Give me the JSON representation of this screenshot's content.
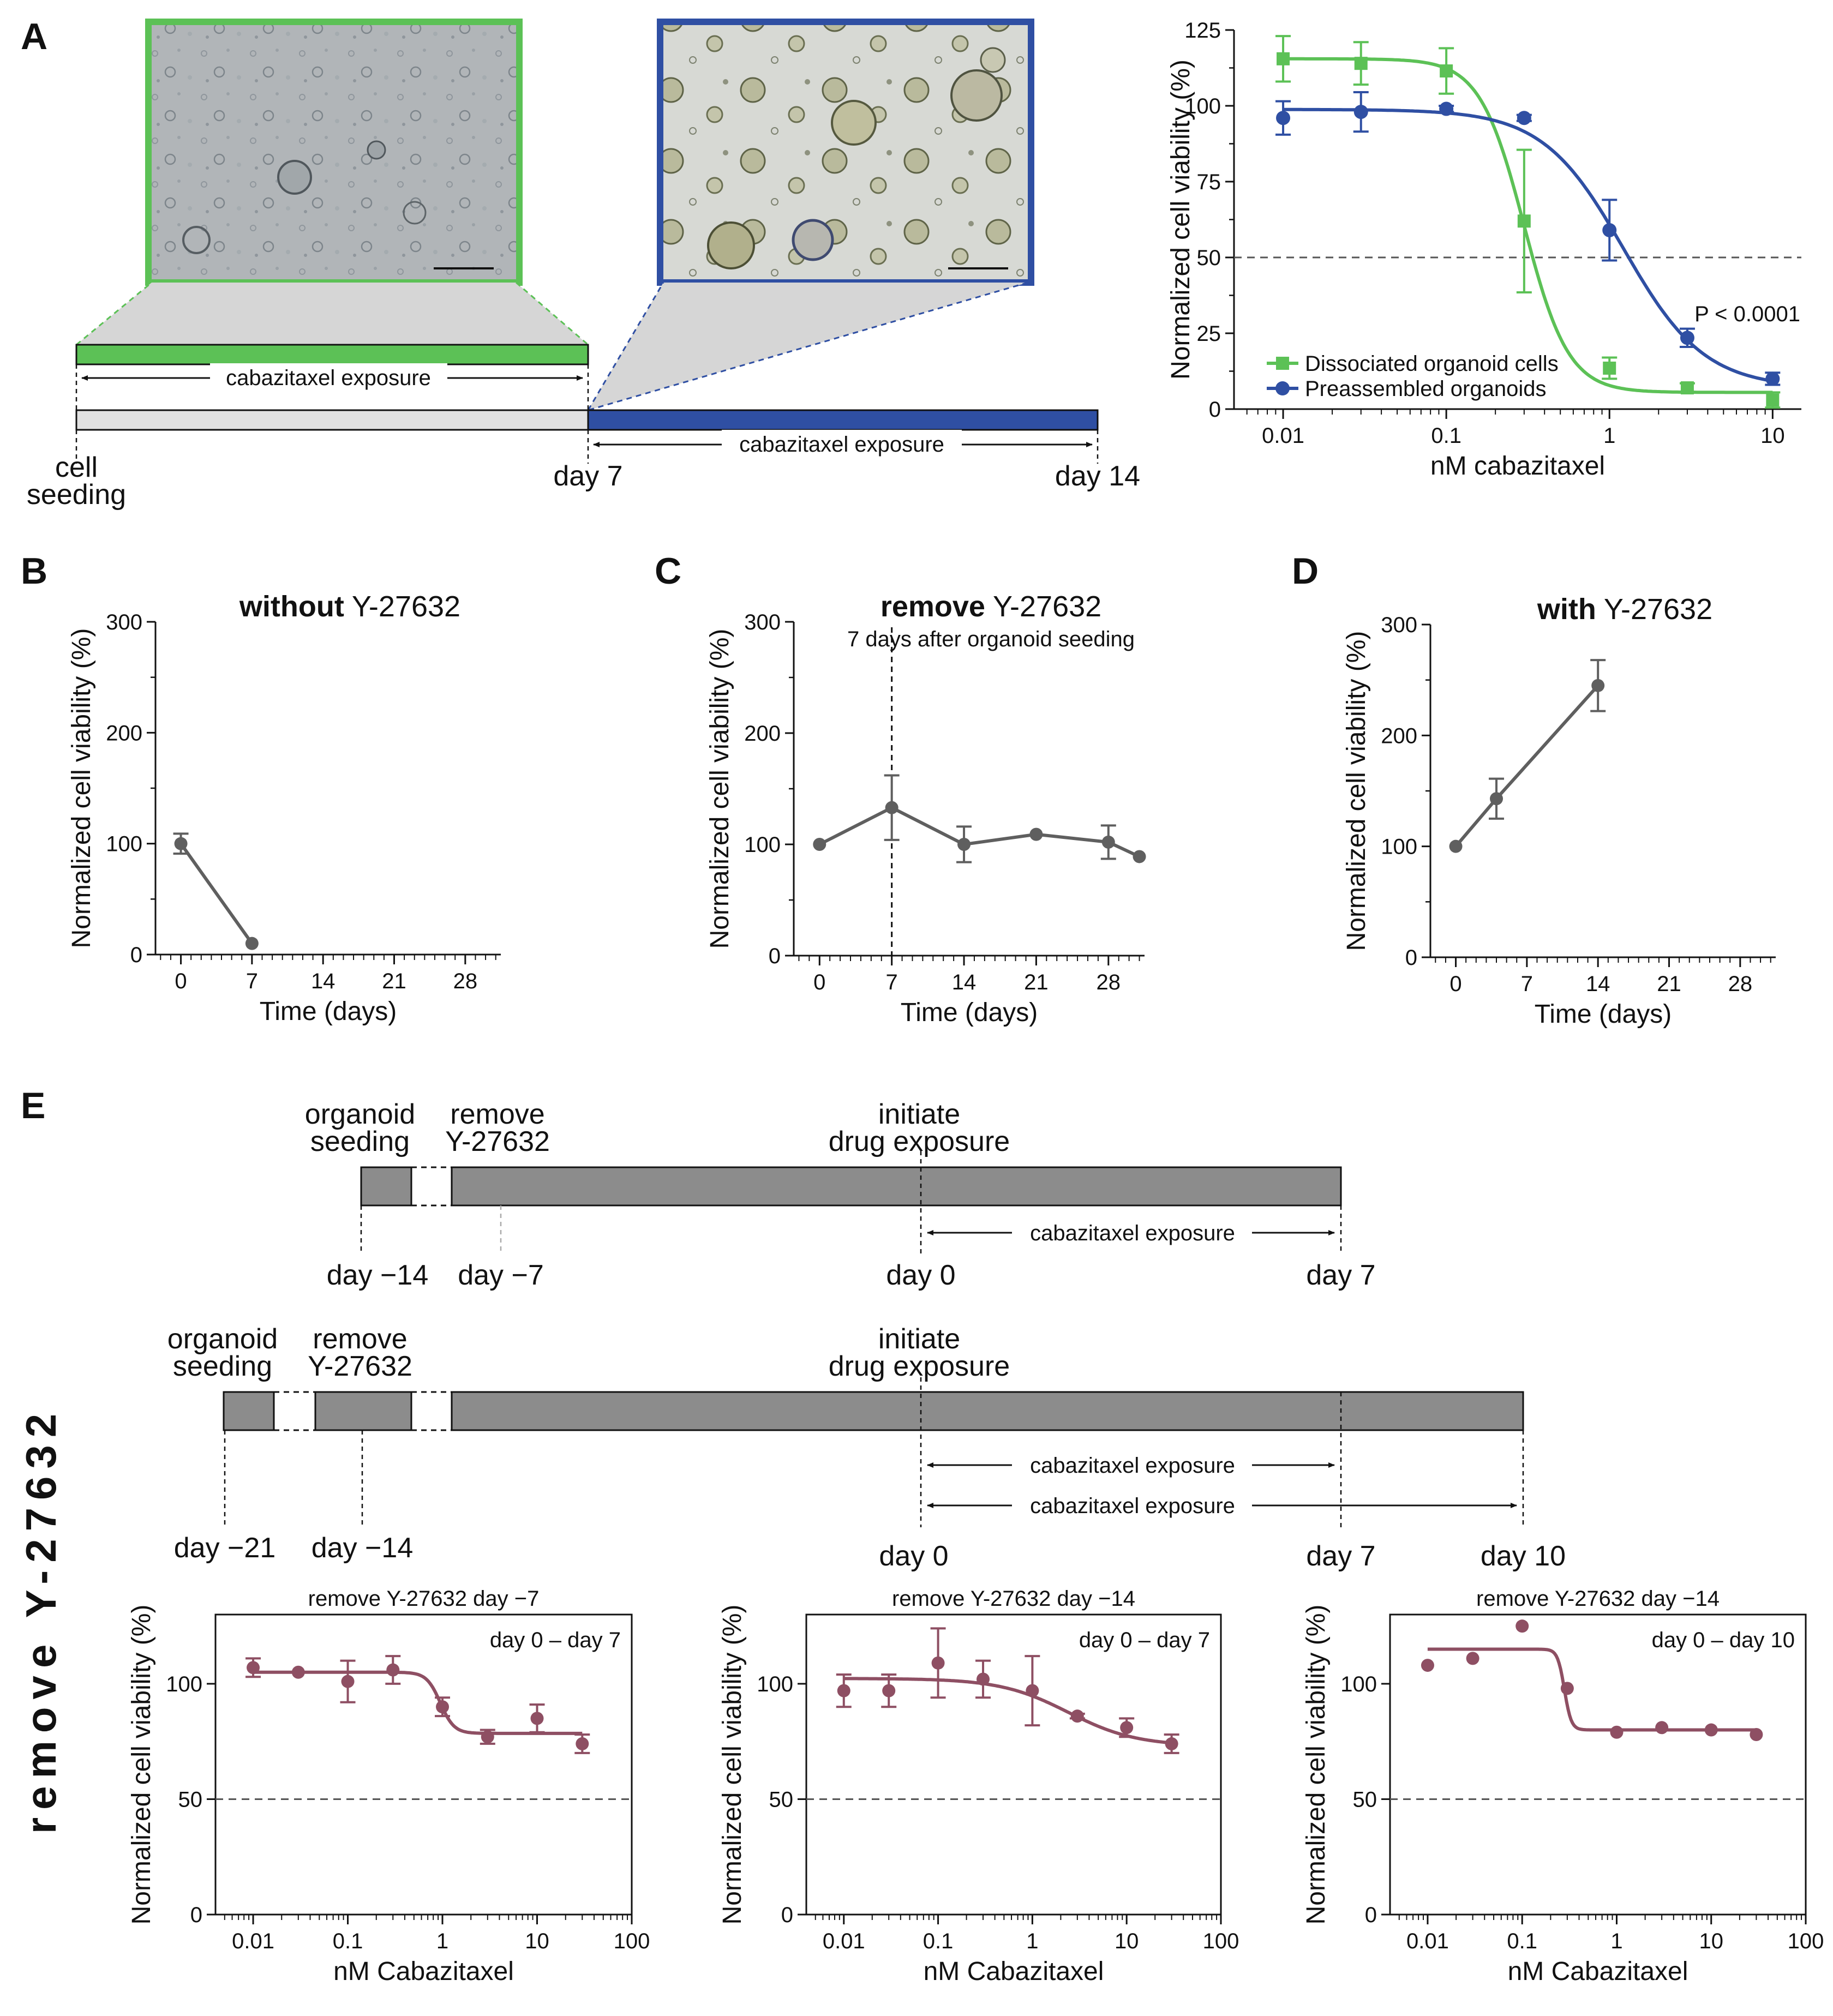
{
  "panels": {
    "A": "A",
    "B": "B",
    "C": "C",
    "D": "D",
    "E": "E"
  },
  "colors": {
    "green": "#5cc156",
    "blue": "#2f4fa3",
    "gray_line": "#5f5f5f",
    "mauve": "#8e4f63",
    "bar_gray": "#8c8c8c",
    "bar_light": "#e2e2e2"
  },
  "timeline_a": {
    "exposure1": "cabazitaxel exposure",
    "exposure2": "cabazitaxel exposure",
    "cell_seeding": "cell\nseeding",
    "day7": "day 7",
    "day14": "day 14"
  },
  "timeline_e1": {
    "organoid_seeding": "organoid\nseeding",
    "remove": "remove\nY-27632",
    "initiate": "initiate\ndrug exposure",
    "exposure": "cabazitaxel exposure",
    "day_m14": "day −14",
    "day_m7": "day −7",
    "day0": "day 0",
    "day7": "day 7"
  },
  "timeline_e2": {
    "organoid_seeding": "organoid\nseeding",
    "remove": "remove\nY-27632",
    "initiate": "initiate\ndrug exposure",
    "exposure1": "cabazitaxel exposure",
    "exposure2": "cabazitaxel exposure",
    "day_m21": "day −21",
    "day_m14": "day −14",
    "day0": "day 0",
    "day7": "day 7",
    "day10": "day 10"
  },
  "side_label": "remove Y-27632",
  "chart_data": [
    {
      "id": "A",
      "type": "scatter",
      "xscale": "log",
      "xlim": [
        0.005,
        15
      ],
      "ylim": [
        0,
        125
      ],
      "xticks": [
        0.01,
        0.1,
        1,
        10
      ],
      "xticklabels": [
        "0.01",
        "0.1",
        "1",
        "10"
      ],
      "yticks": [
        0,
        25,
        50,
        75,
        100,
        125
      ],
      "xlabel": "nM cabazitaxel",
      "ylabel": "Normalized cell viability (%)",
      "reference_line": 50,
      "annotation": "P < 0.0001",
      "legend": "bottom-left",
      "series": [
        {
          "name": "Dissociated organoid cells",
          "color": "#5cc156",
          "marker": "square",
          "x": [
            0.01,
            0.03,
            0.1,
            0.3,
            1,
            3,
            10
          ],
          "y": [
            115.5,
            114,
            111.5,
            62,
            13.5,
            7,
            3
          ],
          "err": [
            7.5,
            7,
            7.5,
            23.5,
            3.5,
            1.5,
            2.5
          ],
          "fit": {
            "bottom": 5.5,
            "top": 115.5,
            "ic50": 0.3,
            "hill": 3.2
          }
        },
        {
          "name": "Preassembled organoids",
          "color": "#2f4fa3",
          "marker": "circle",
          "x": [
            0.01,
            0.03,
            0.1,
            0.3,
            1,
            3,
            10
          ],
          "y": [
            96,
            98,
            99,
            96,
            59,
            23.5,
            10
          ],
          "err": [
            5.5,
            6.5,
            1,
            1,
            10,
            3,
            2
          ],
          "fit": {
            "bottom": 7,
            "top": 98.8,
            "ic50": 1.22,
            "hill": 1.75
          }
        }
      ]
    },
    {
      "id": "B",
      "type": "line",
      "title_bold": "without",
      "title_rest": " Y-27632",
      "xlim": [
        -2.5,
        31.5
      ],
      "ylim": [
        0,
        300
      ],
      "xticks": [
        0,
        7,
        14,
        21,
        28
      ],
      "yticks": [
        0,
        100,
        200,
        300
      ],
      "xlabel": "Time (days)",
      "ylabel": "Normalized cell viability (%)",
      "series": [
        {
          "x": [
            0,
            7
          ],
          "y": [
            100,
            10
          ],
          "err": [
            9,
            0
          ]
        }
      ]
    },
    {
      "id": "C",
      "type": "line",
      "title_bold": "remove",
      "title_rest": " Y-27632",
      "subtitle": "7 days after organoid seeding",
      "vline": 7,
      "xlim": [
        -2.5,
        31.5
      ],
      "ylim": [
        0,
        300
      ],
      "xticks": [
        0,
        7,
        14,
        21,
        28
      ],
      "yticks": [
        0,
        100,
        200,
        300
      ],
      "xlabel": "Time (days)",
      "ylabel": "Normalized cell viability (%)",
      "series": [
        {
          "x": [
            0,
            7,
            14,
            21,
            28,
            31
          ],
          "y": [
            100,
            133,
            100,
            109,
            102,
            89
          ],
          "err": [
            0,
            29,
            16,
            0,
            15,
            0
          ]
        }
      ]
    },
    {
      "id": "D",
      "type": "line",
      "title_bold": "with",
      "title_rest": " Y-27632",
      "xlim": [
        -2.5,
        31.5
      ],
      "ylim": [
        0,
        300
      ],
      "xticks": [
        0,
        7,
        14,
        21,
        28
      ],
      "yticks": [
        0,
        100,
        200,
        300
      ],
      "xlabel": "Time (days)",
      "ylabel": "Normalized cell viability (%)",
      "series": [
        {
          "x": [
            0,
            4,
            14
          ],
          "y": [
            100,
            143,
            245
          ],
          "err": [
            0,
            18,
            23
          ]
        }
      ]
    },
    {
      "id": "E1",
      "type": "scatter",
      "title": "remove Y-27632 day −7",
      "inset": "day 0 – day 7",
      "xscale": "log",
      "xlim": [
        0.004,
        100
      ],
      "ylim": [
        0,
        130
      ],
      "xticks": [
        0.01,
        0.1,
        1,
        10,
        100
      ],
      "xticklabels": [
        "0.01",
        "0.1",
        "1",
        "10",
        "100"
      ],
      "yticks": [
        0,
        50,
        100
      ],
      "xlabel": "nM Cabazitaxel",
      "ylabel": "Normalized cell viability (%)",
      "reference_line": 50,
      "series": [
        {
          "color": "#8e4f63",
          "x": [
            0.01,
            0.03,
            0.1,
            0.3,
            1,
            3,
            10,
            30
          ],
          "y": [
            107,
            105,
            101,
            106,
            90,
            77,
            85,
            74
          ],
          "err": [
            4,
            0,
            9,
            6,
            4,
            3,
            6,
            4
          ],
          "fit": {
            "bottom": 78.5,
            "top": 105,
            "ic50": 0.95,
            "hill": 6
          }
        }
      ]
    },
    {
      "id": "E2",
      "type": "scatter",
      "title": "remove Y-27632 day −14",
      "inset": "day 0 – day 7",
      "xscale": "log",
      "xlim": [
        0.004,
        100
      ],
      "ylim": [
        0,
        130
      ],
      "xticks": [
        0.01,
        0.1,
        1,
        10,
        100
      ],
      "xticklabels": [
        "0.01",
        "0.1",
        "1",
        "10",
        "100"
      ],
      "yticks": [
        0,
        50,
        100
      ],
      "xlabel": "nM Cabazitaxel",
      "ylabel": "Normalized cell viability (%)",
      "reference_line": 50,
      "series": [
        {
          "color": "#8e4f63",
          "x": [
            0.01,
            0.03,
            0.1,
            0.3,
            1,
            3,
            10,
            30
          ],
          "y": [
            97,
            97,
            109,
            102,
            97,
            86,
            81,
            74
          ],
          "err": [
            7,
            7,
            15,
            8,
            15,
            1,
            4,
            4
          ],
          "fit": {
            "bottom": 73,
            "top": 102.3,
            "ic50": 2.4,
            "hill": 1.2
          }
        }
      ]
    },
    {
      "id": "E3",
      "type": "scatter",
      "title": "remove Y-27632 day −14",
      "inset": "day 0 – day 10",
      "xscale": "log",
      "xlim": [
        0.004,
        100
      ],
      "ylim": [
        0,
        130
      ],
      "xticks": [
        0.01,
        0.1,
        1,
        10,
        100
      ],
      "xticklabels": [
        "0.01",
        "0.1",
        "1",
        "10",
        "100"
      ],
      "yticks": [
        0,
        50,
        100
      ],
      "xlabel": "nM Cabazitaxel",
      "ylabel": "Normalized cell viability (%)",
      "reference_line": 50,
      "series": [
        {
          "color": "#8e4f63",
          "x": [
            0.01,
            0.03,
            0.1,
            0.3,
            1,
            3,
            10,
            30
          ],
          "y": [
            108,
            111,
            125,
            98,
            79,
            81,
            80,
            78
          ],
          "err": [
            0,
            0,
            0,
            0,
            0,
            0,
            0,
            0
          ],
          "fit": {
            "bottom": 80,
            "top": 115,
            "ic50": 0.28,
            "hill": 12
          }
        }
      ]
    }
  ]
}
